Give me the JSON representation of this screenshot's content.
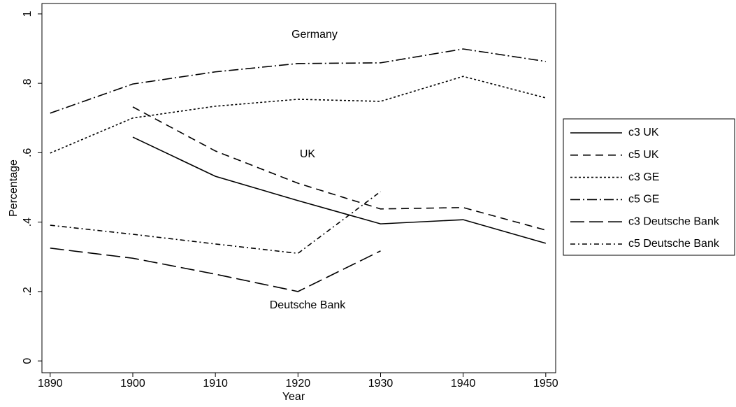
{
  "chart_data": {
    "type": "line",
    "x": [
      1890,
      1900,
      1910,
      1920,
      1930,
      1940,
      1950
    ],
    "series": [
      {
        "name": "c3 UK",
        "color": "#000000",
        "dash": "none",
        "values": [
          null,
          0.645,
          0.532,
          0.462,
          0.395,
          0.407,
          0.339
        ]
      },
      {
        "name": "c5 UK",
        "color": "#000000",
        "dash": "11,7",
        "values": [
          null,
          0.732,
          0.605,
          0.512,
          0.438,
          0.442,
          0.377
        ]
      },
      {
        "name": "c3 GE",
        "color": "#000000",
        "dash": "3,3",
        "values": [
          0.599,
          0.7,
          0.734,
          0.754,
          0.748,
          0.82,
          0.758
        ]
      },
      {
        "name": "c5 GE",
        "color": "#000000",
        "dash": "14,4,2,4",
        "values": [
          0.714,
          0.798,
          0.833,
          0.857,
          0.859,
          0.899,
          0.863
        ]
      },
      {
        "name": "c3 Deutsche Bank",
        "color": "#000000",
        "dash": "20,7",
        "values": [
          0.325,
          0.296,
          0.25,
          0.2,
          0.317,
          null,
          null
        ]
      },
      {
        "name": "c5 Deutsche Bank",
        "color": "#000000",
        "dash": "7,4,2,4",
        "values": [
          0.391,
          0.365,
          0.337,
          0.31,
          0.488,
          null,
          null
        ]
      }
    ],
    "annotations": [
      "Germany",
      "UK",
      "Deutsche Bank"
    ],
    "xlabel": "Year",
    "ylabel": "Percentage",
    "xlim": [
      1889,
      1951.2
    ],
    "ylim": [
      -0.034,
      1.03
    ],
    "xticks": [
      1890,
      1900,
      1910,
      1920,
      1930,
      1940,
      1950
    ],
    "yticks": [
      0,
      {
        "value": 0.2,
        "label": ".2"
      },
      {
        "value": 0.4,
        "label": ".4"
      },
      {
        "value": 0.6,
        "label": ".6"
      },
      {
        "value": 0.8,
        "label": ".8"
      },
      1
    ],
    "grid": false
  }
}
